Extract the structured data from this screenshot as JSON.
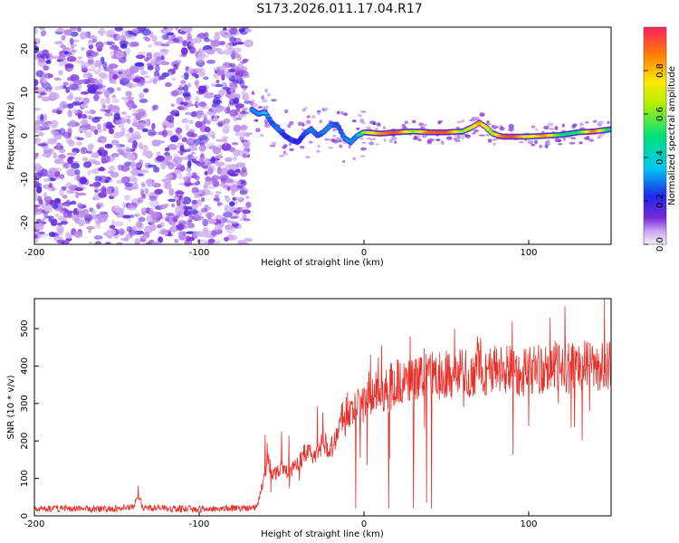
{
  "figure_title": "S173.2026.011.17.04.R17",
  "colors": {
    "axis": "#000000",
    "snr_line": "#e8302a",
    "background": "#ffffff"
  },
  "chart_data": [
    {
      "type": "heatmap",
      "title": "S173.2026.011.17.04.R17",
      "xlabel": "Height of straight line (km)",
      "ylabel": "Frequency (Hz)",
      "xlim": [
        -200,
        150
      ],
      "ylim": [
        -25,
        25
      ],
      "xticks": [
        "-200",
        "-100",
        "0",
        "100"
      ],
      "yticks": [
        "-20",
        "-10",
        "0",
        "10",
        "20"
      ],
      "colorbar": {
        "label": "Normalized spectral amplitude",
        "range": [
          0,
          1
        ],
        "ticks": [
          "0.0",
          "0.2",
          "0.4",
          "0.6",
          "0.8"
        ]
      },
      "noise_region_x": [
        -200,
        -70
      ],
      "ridge": {
        "x": [
          -68,
          -64,
          -60,
          -56,
          -52,
          -48,
          -44,
          -40,
          -36,
          -32,
          -28,
          -24,
          -20,
          -16,
          -12,
          -8,
          -4,
          0,
          10,
          20,
          30,
          40,
          50,
          60,
          66,
          70,
          74,
          78,
          84,
          90,
          100,
          110,
          120,
          130,
          140,
          150
        ],
        "freq": [
          6,
          5,
          5.5,
          3,
          1.5,
          0,
          -1,
          -1.5,
          0.5,
          1.5,
          0,
          1,
          2.5,
          2.5,
          -0.5,
          -1.5,
          0,
          0.8,
          0.5,
          0.8,
          1,
          0.8,
          0.8,
          1,
          2,
          3,
          2,
          0.5,
          -0.2,
          -0.2,
          -0.2,
          0,
          0.2,
          0.8,
          1,
          1.5
        ],
        "amplitude": [
          0.3,
          0.3,
          0.35,
          0.25,
          0.3,
          0.2,
          0.25,
          0.2,
          0.25,
          0.3,
          0.25,
          0.3,
          0.3,
          0.25,
          0.3,
          0.3,
          0.3,
          0.6,
          0.85,
          0.95,
          0.6,
          0.9,
          0.95,
          0.6,
          0.7,
          0.85,
          0.7,
          0.6,
          0.9,
          0.95,
          0.7,
          0.85,
          0.5,
          0.5,
          0.9,
          0.4
        ]
      }
    },
    {
      "type": "line",
      "xlabel": "Height of straight line (km)",
      "ylabel": "SNR (10 * v/v)",
      "xlim": [
        -200,
        150
      ],
      "ylim": [
        0,
        580
      ],
      "xticks": [
        "-200",
        "-100",
        "0",
        "100"
      ],
      "yticks": [
        "0",
        "100",
        "200",
        "300",
        "400",
        "500"
      ],
      "series": [
        {
          "name": "SNR",
          "x": [
            -200,
            -180,
            -160,
            -140,
            -137,
            -134,
            -120,
            -100,
            -80,
            -65,
            -58,
            -55,
            -50,
            -45,
            -40,
            -35,
            -30,
            -25,
            -20,
            -15,
            -10,
            -5,
            0,
            5,
            10,
            15,
            20,
            25,
            30,
            35,
            40,
            45,
            50,
            55,
            60,
            65,
            70,
            75,
            80,
            85,
            90,
            95,
            100,
            105,
            110,
            115,
            120,
            125,
            130,
            135,
            140,
            145,
            150
          ],
          "y": [
            18,
            20,
            18,
            22,
            55,
            22,
            20,
            18,
            20,
            22,
            150,
            110,
            130,
            115,
            140,
            170,
            160,
            200,
            180,
            240,
            260,
            290,
            300,
            320,
            340,
            330,
            360,
            350,
            370,
            360,
            380,
            370,
            385,
            370,
            380,
            375,
            400,
            380,
            395,
            385,
            400,
            380,
            390,
            395,
            385,
            400,
            390,
            395,
            410,
            400,
            405,
            395,
            400
          ],
          "spike_up": [
            [
              -137,
              80
            ],
            [
              -25,
              310
            ],
            [
              -10,
              330
            ],
            [
              4,
              430
            ],
            [
              28,
              480
            ],
            [
              55,
              500
            ],
            [
              90,
              520
            ],
            [
              113,
              530
            ],
            [
              122,
              560
            ],
            [
              146,
              580
            ]
          ],
          "spike_down": [
            [
              -5,
              20
            ],
            [
              15,
              20
            ],
            [
              30,
              20
            ],
            [
              38,
              35
            ],
            [
              41,
              20
            ],
            [
              100,
              240
            ],
            [
              118,
              300
            ],
            [
              137,
              280
            ]
          ]
        }
      ]
    }
  ]
}
